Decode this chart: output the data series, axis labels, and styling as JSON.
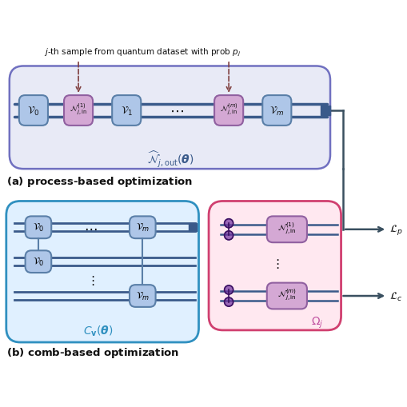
{
  "bg_color": "#ffffff",
  "box_v_color": "#aec6e8",
  "box_n_color": "#d4a8d4",
  "box_v_edge": "#5a7fa8",
  "box_n_edge": "#9060a0",
  "wire_color": "#3a5a8a",
  "top_box_bg": "#e8eaf6",
  "top_box_edge": "#7070c0",
  "left_box_bg": "#e0f0ff",
  "left_box_edge": "#3090c0",
  "right_box_bg": "#ffe8f0",
  "right_box_edge": "#d04070",
  "arrow_color": "#3a5060",
  "dashed_color": "#804040",
  "label_a_color": "#3a5a8a",
  "label_b_color": "#3090c0",
  "label_omega_color": "#c050a0",
  "text_color": "#111111",
  "loss_color": "#111111"
}
